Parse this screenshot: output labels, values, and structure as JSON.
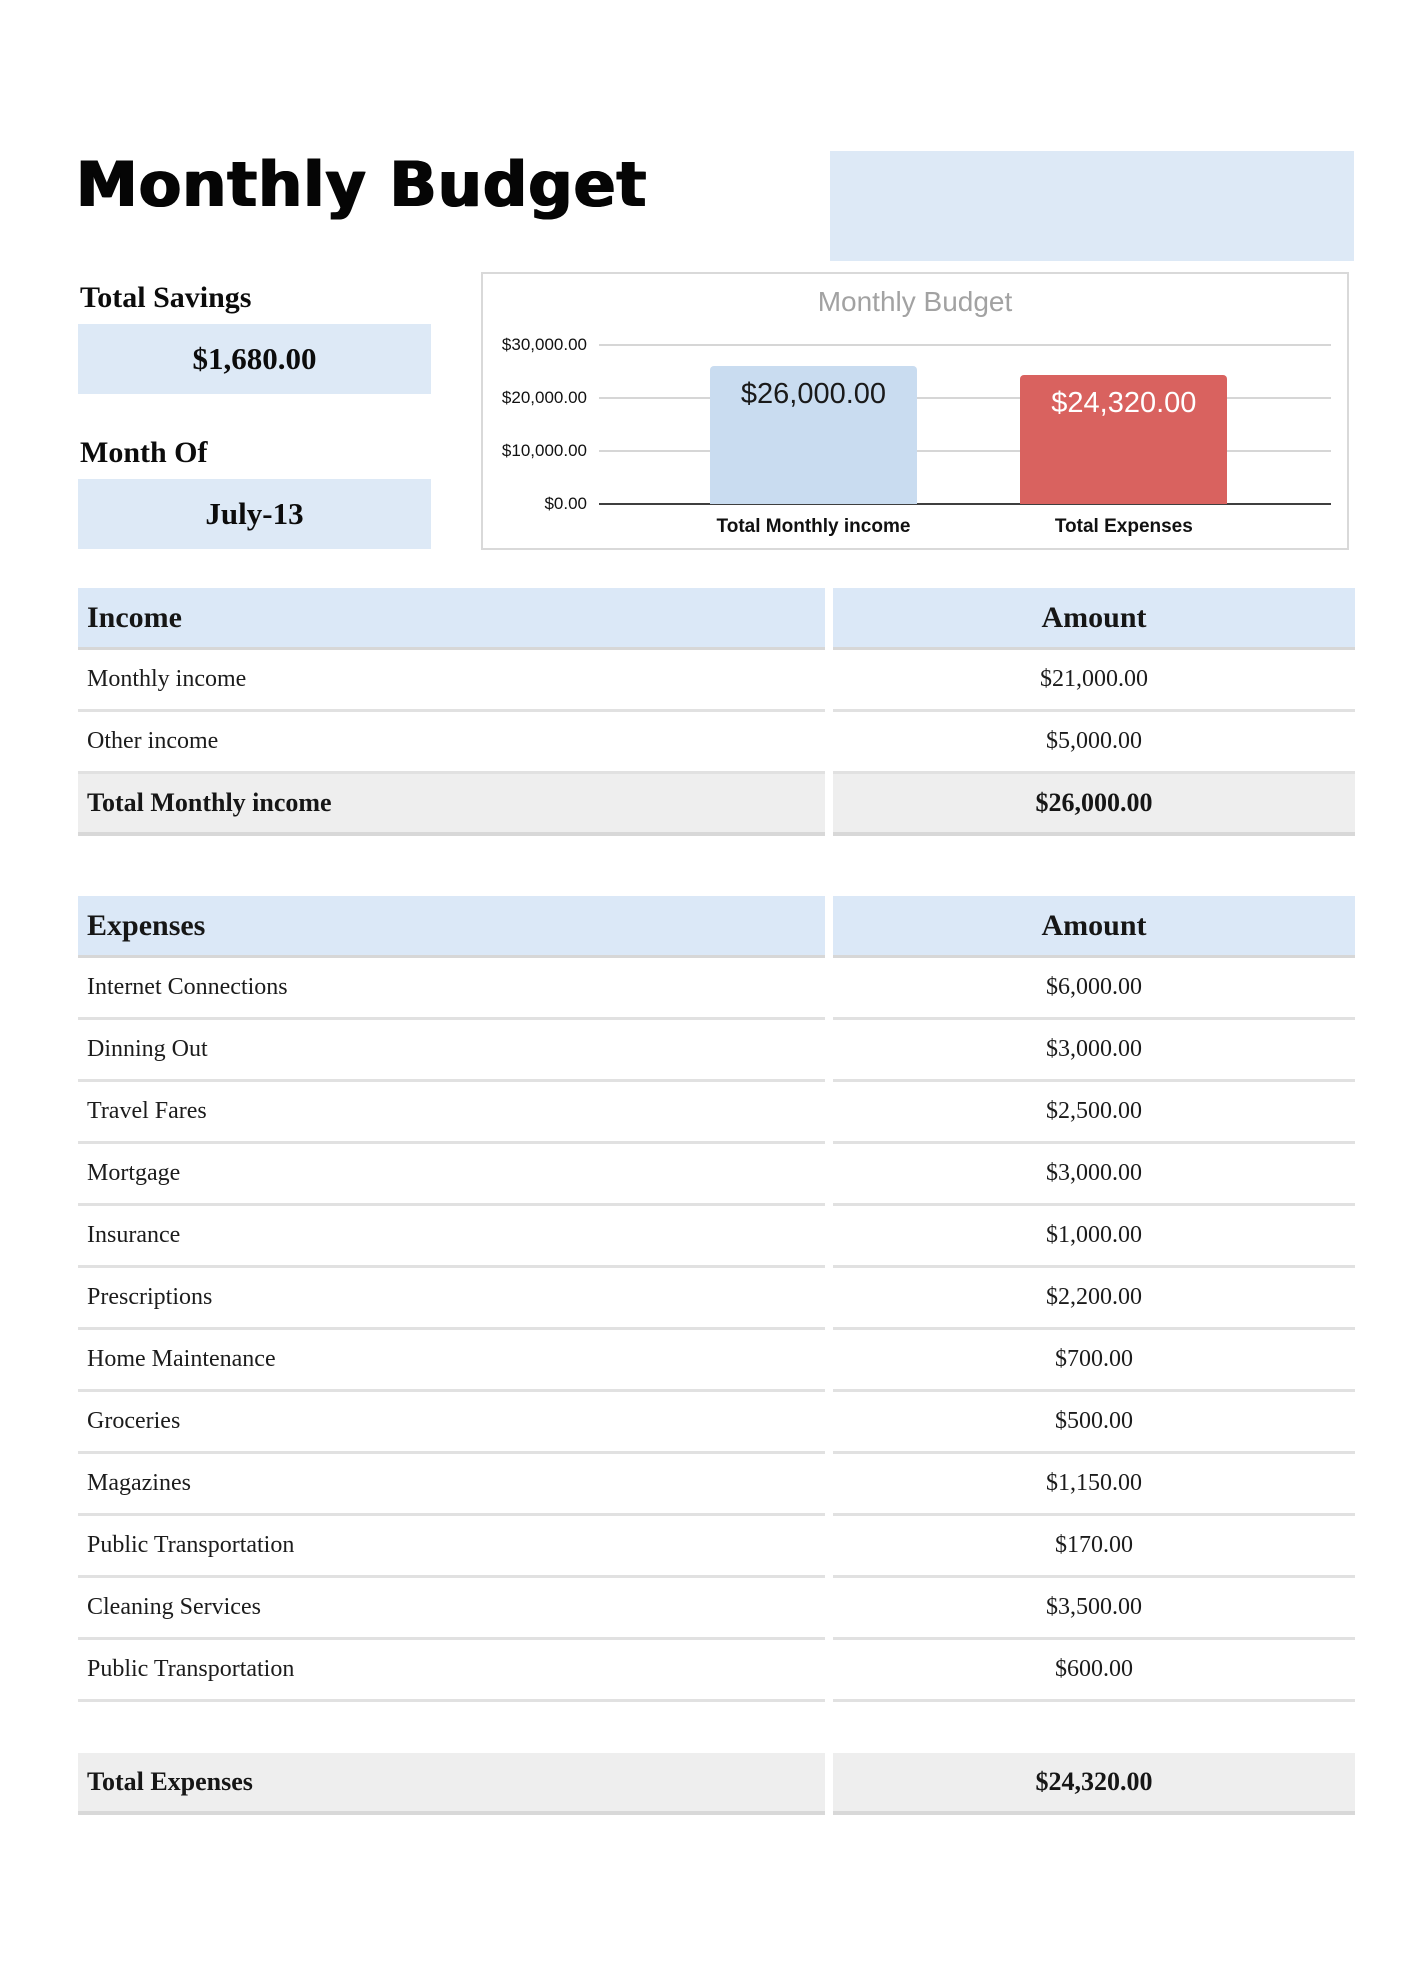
{
  "page": {
    "title": "Monthly Budget"
  },
  "summary": {
    "total_savings_label": "Total Savings",
    "total_savings_value": "$1,680.00",
    "month_of_label": "Month Of",
    "month_of_value": "July-13"
  },
  "chart_data": {
    "type": "bar",
    "title": "Monthly Budget",
    "categories": [
      "Total Monthly income",
      "Total Expenses"
    ],
    "values": [
      26000,
      24320
    ],
    "value_labels": [
      "$26,000.00",
      "$24,320.00"
    ],
    "bar_colors": [
      "#c9dcf0",
      "#d9625f"
    ],
    "value_label_colors": [
      "#1a1a1a",
      "#ffffff"
    ],
    "title_color": "#a2a2a2",
    "ylim": [
      0,
      30000
    ],
    "yticks": [
      0,
      10000,
      20000,
      30000
    ],
    "ytick_labels": [
      "$0.00",
      "$10,000.00",
      "$20,000.00",
      "$30,000.00"
    ],
    "grid": true,
    "legend": false
  },
  "income_table": {
    "header": {
      "col1": "Income",
      "col2": "Amount"
    },
    "rows": [
      {
        "label": "Monthly income",
        "amount": "$21,000.00"
      },
      {
        "label": "Other income",
        "amount": "$5,000.00"
      }
    ],
    "total": {
      "label": "Total Monthly income",
      "amount": "$26,000.00"
    }
  },
  "expenses_table": {
    "header": {
      "col1": "Expenses",
      "col2": "Amount"
    },
    "rows": [
      {
        "label": "Internet Connections",
        "amount": "$6,000.00"
      },
      {
        "label": "Dinning Out",
        "amount": "$3,000.00"
      },
      {
        "label": "Travel Fares",
        "amount": "$2,500.00"
      },
      {
        "label": "Mortgage",
        "amount": "$3,000.00"
      },
      {
        "label": "Insurance",
        "amount": "$1,000.00"
      },
      {
        "label": "Prescriptions",
        "amount": "$2,200.00"
      },
      {
        "label": "Home Maintenance",
        "amount": "$700.00"
      },
      {
        "label": "Groceries",
        "amount": "$500.00"
      },
      {
        "label": "Magazines",
        "amount": "$1,150.00"
      },
      {
        "label": "Public Transportation",
        "amount": "$170.00"
      },
      {
        "label": "Cleaning Services",
        "amount": "$3,500.00"
      },
      {
        "label": "Public Transportation",
        "amount": "$600.00"
      }
    ]
  },
  "totals": {
    "total_expenses": {
      "label": "Total Expenses",
      "amount": "$24,320.00"
    }
  },
  "colors": {
    "accent_blue": "#dde9f6",
    "table_header_blue": "#dbe8f7",
    "total_row_gray": "#eeeeee",
    "bar_blue": "#c9dcf0",
    "bar_red": "#d9625f"
  }
}
